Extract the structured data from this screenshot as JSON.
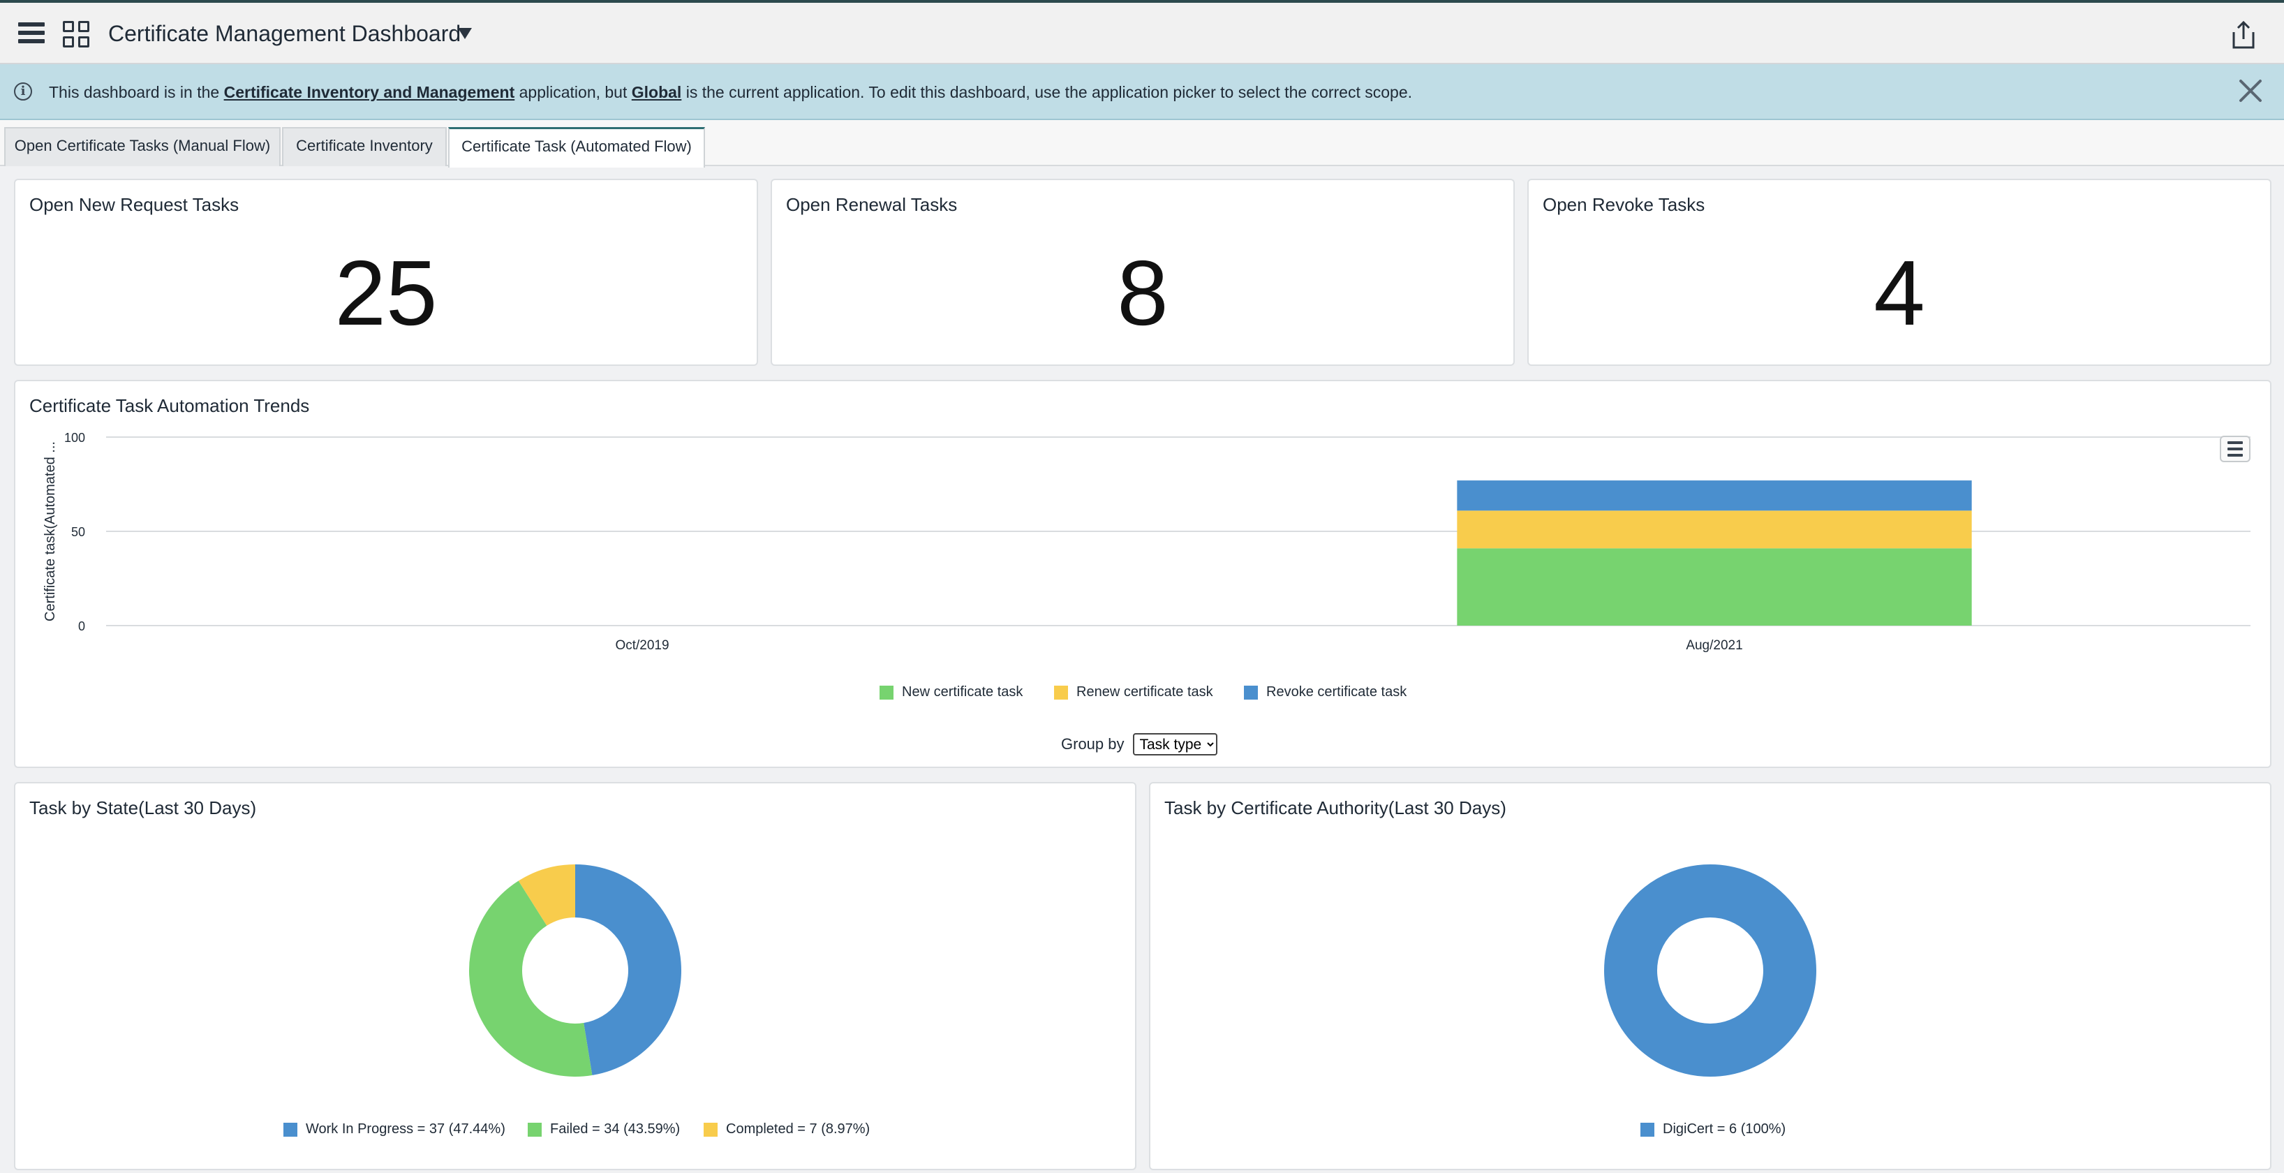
{
  "header": {
    "title": "Certificate Management Dashboard"
  },
  "banner": {
    "text_1": "This dashboard is in the ",
    "link_scope": "Certificate Inventory and Management",
    "text_2": " application, but ",
    "link_global": "Global",
    "text_3": " is the current application. To edit this dashboard, use the application picker to select the correct scope."
  },
  "tabs": [
    {
      "label": "Open Certificate Tasks (Manual Flow)"
    },
    {
      "label": "Certificate Inventory"
    },
    {
      "label": "Certificate Task (Automated Flow)"
    }
  ],
  "kpis": [
    {
      "title": "Open New Request Tasks",
      "value": "25"
    },
    {
      "title": "Open Renewal Tasks",
      "value": "8"
    },
    {
      "title": "Open Revoke Tasks",
      "value": "4"
    }
  ],
  "trend_card": {
    "title": "Certificate Task Automation Trends",
    "group_by_label": "Group by",
    "group_by_value": "Task type"
  },
  "state_card": {
    "title": "Task by State(Last 30 Days)"
  },
  "authority_card": {
    "title": "Task by Certificate Authority(Last 30 Days)"
  },
  "colors": {
    "green": "#77d36f",
    "yellow": "#f8cc4c",
    "blue": "#4a8fce"
  },
  "chart_data": [
    {
      "type": "bar",
      "stacked": true,
      "title": "Certificate Task Automation Trends",
      "ylabel": "Certificate task(Automated ...",
      "xlabel": "",
      "categories": [
        "Oct/2019",
        "Aug/2021"
      ],
      "yticks": [
        "0",
        "50",
        "100"
      ],
      "ylim": [
        0,
        100
      ],
      "series": [
        {
          "name": "New certificate task",
          "color": "#77d36f",
          "values": [
            0,
            41
          ]
        },
        {
          "name": "Renew certificate task",
          "color": "#f8cc4c",
          "values": [
            0,
            20
          ]
        },
        {
          "name": "Revoke certificate task",
          "color": "#4a8fce",
          "values": [
            0,
            16
          ]
        }
      ],
      "legend_position": "bottom"
    },
    {
      "type": "pie",
      "donut": true,
      "title": "Task by State(Last 30 Days)",
      "slices": [
        {
          "label": "Work In Progress = 37 (47.44%)",
          "value": 37,
          "color": "#4a8fce"
        },
        {
          "label": "Failed = 34 (43.59%)",
          "value": 34,
          "color": "#77d36f"
        },
        {
          "label": "Completed = 7 (8.97%)",
          "value": 7,
          "color": "#f8cc4c"
        }
      ],
      "legend_position": "bottom"
    },
    {
      "type": "pie",
      "donut": true,
      "title": "Task by Certificate Authority(Last 30 Days)",
      "slices": [
        {
          "label": "DigiCert = 6 (100%)",
          "value": 6,
          "color": "#4a8fce"
        }
      ],
      "legend_position": "bottom"
    }
  ]
}
